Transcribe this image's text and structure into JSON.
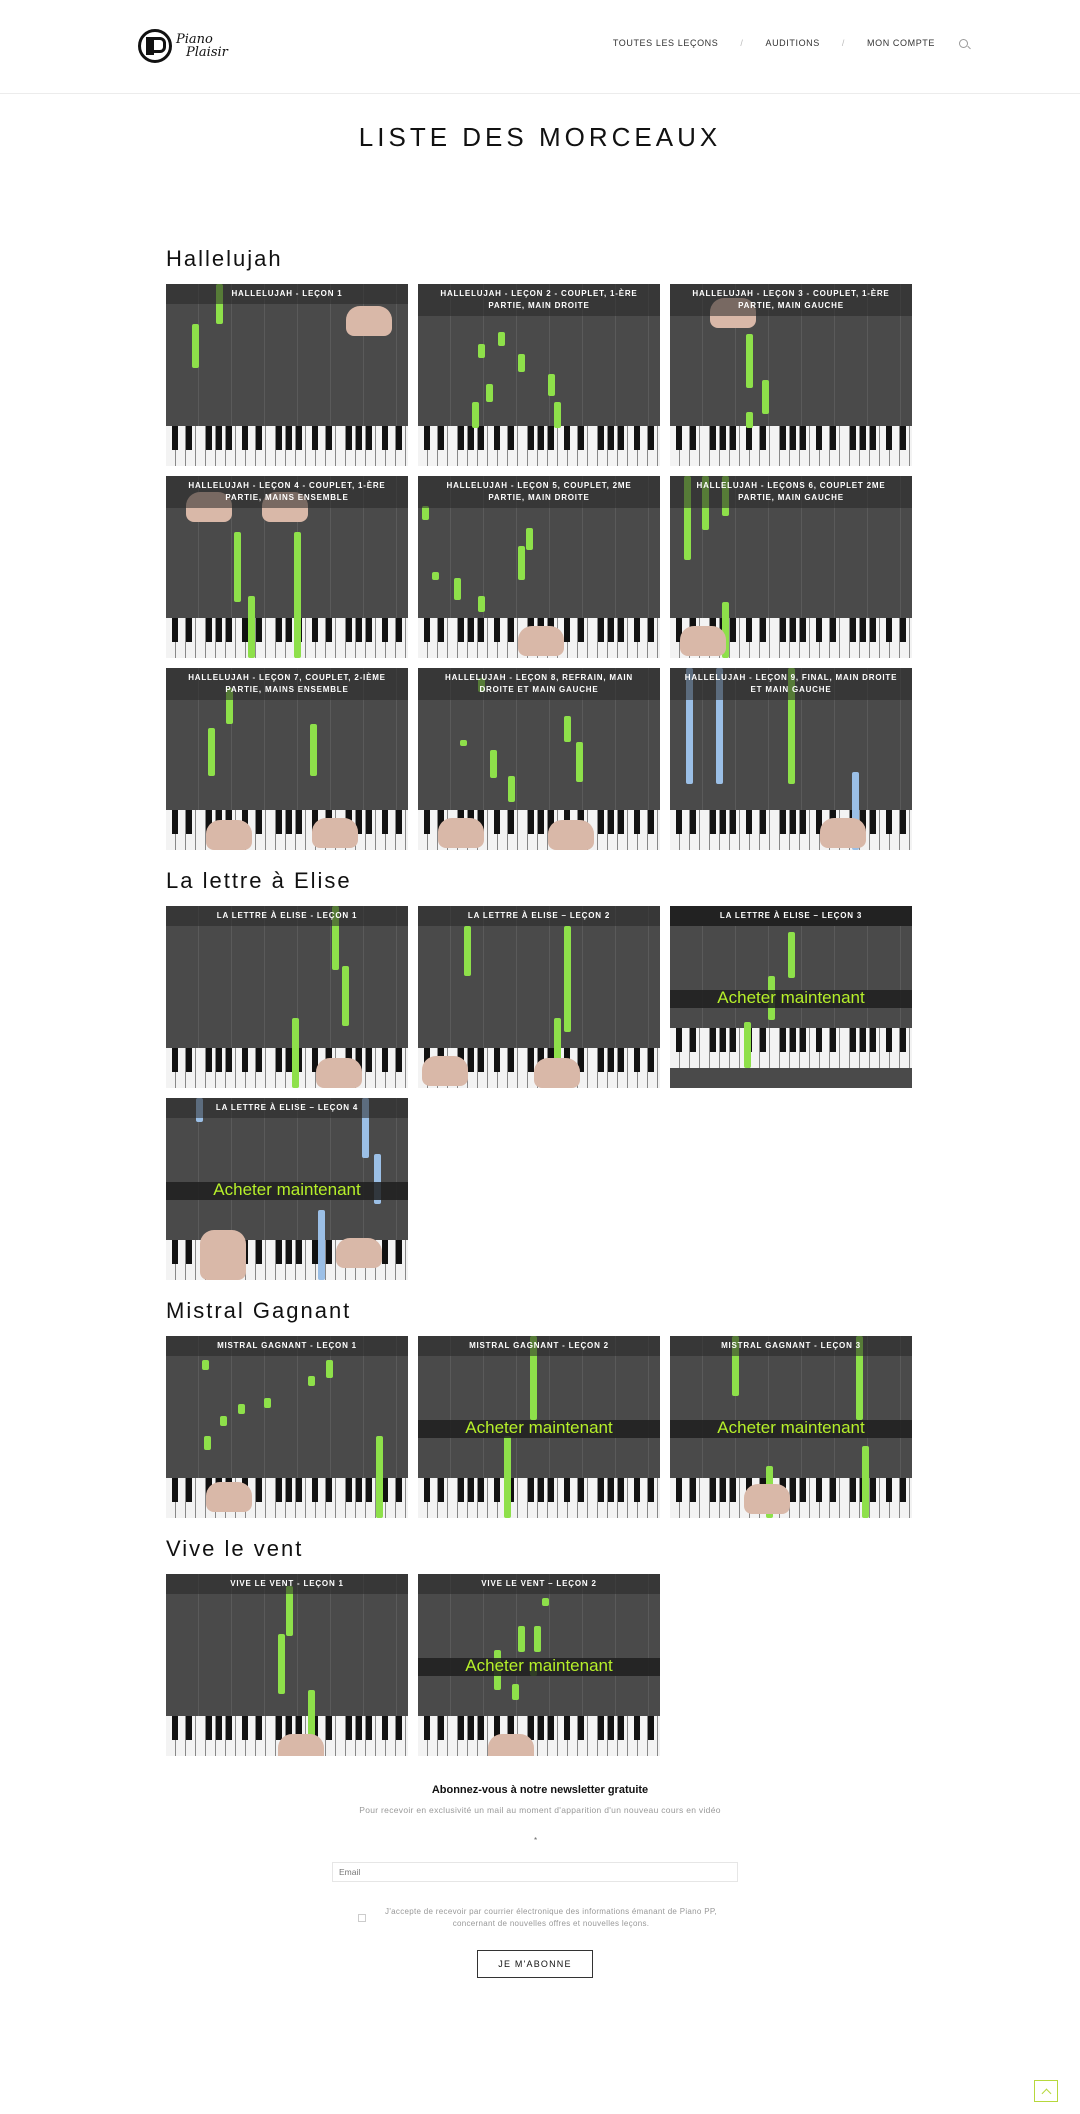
{
  "header": {
    "logo_line1": "Piano",
    "logo_line2": "Plaisir",
    "nav": [
      {
        "label": "Toutes les leçons"
      },
      {
        "label": "Auditions"
      },
      {
        "label": "Mon compte"
      }
    ],
    "separator": "/"
  },
  "page_title": "LISTE DES MORCEAUX",
  "buy_label": "Acheter maintenant",
  "sections": [
    {
      "title": "Hallelujah",
      "lessons": [
        {
          "caption": "Hallelujah - Leçon 1"
        },
        {
          "caption": "Hallelujah - Leçon 2 - Couplet, 1-ère partie, main droite"
        },
        {
          "caption": "Hallelujah - Leçon 3 - Couplet, 1-ère partie, main gauche"
        },
        {
          "caption": "Hallelujah - Leçon 4 - Couplet, 1-ère partie, mains ensemble"
        },
        {
          "caption": "Hallelujah - Leçon 5, couplet, 2me partie, main droite"
        },
        {
          "caption": "Hallelujah - Leçons 6, couplet 2me partie, main gauche"
        },
        {
          "caption": "Hallelujah - Leçon 7, couplet, 2-ième partie, mains ensemble"
        },
        {
          "caption": "Hallelujah - Leçon 8, refrain, main droite et main gauche"
        },
        {
          "caption": "Hallelujah - Leçon 9, final, main droite et main gauche"
        }
      ]
    },
    {
      "title": "La lettre à Elise",
      "lessons": [
        {
          "caption": "La lettre à Elise - Leçon 1"
        },
        {
          "caption": "La lettre à Elise – Leçon 2"
        },
        {
          "caption": "La lettre à Elise – Leçon 3"
        },
        {
          "caption": "La lettre à Elise – Leçon 4"
        }
      ]
    },
    {
      "title": "Mistral Gagnant",
      "lessons": [
        {
          "caption": "Mistral Gagnant - Leçon 1"
        },
        {
          "caption": "Mistral Gagnant - Leçon 2"
        },
        {
          "caption": "Mistral Gagnant - Leçon 3"
        }
      ]
    },
    {
      "title": "Vive le vent",
      "lessons": [
        {
          "caption": "Vive le vent - Leçon 1"
        },
        {
          "caption": "Vive le vent – Leçon 2"
        }
      ]
    }
  ],
  "newsletter": {
    "title": "Abonnez-vous à notre newsletter gratuite",
    "description": "Pour recevoir en exclusivité un mail au moment d'apparition d'un nouveau cours en vidéo",
    "required_mark": "*",
    "email_placeholder": "Email",
    "consent": "J'accepte de recevoir par courrier électronique des informations émanant de Piano PP, concernant de nouvelles offres et nouvelles leçons.",
    "button": "Je m'abonne"
  }
}
